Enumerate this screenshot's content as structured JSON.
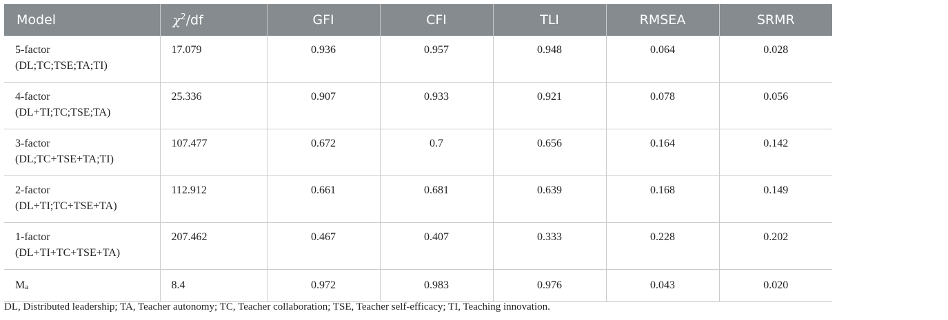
{
  "table": {
    "headers": {
      "model": "Model",
      "chi_symbol": "χ",
      "chi_exp": "2",
      "chi_rest": "/df",
      "gfi": "GFI",
      "cfi": "CFI",
      "tli": "TLI",
      "rmsea": "RMSEA",
      "srmr": "SRMR"
    },
    "rows": [
      {
        "model_line1": "5-factor",
        "model_line2": "(DL;TC;TSE;TA;TI)",
        "chi": "17.079",
        "gfi": "0.936",
        "cfi": "0.957",
        "tli": "0.948",
        "rmsea": "0.064",
        "srmr": "0.028"
      },
      {
        "model_line1": "4-factor",
        "model_line2": "(DL+TI;TC;TSE;TA)",
        "chi": "25.336",
        "gfi": "0.907",
        "cfi": "0.933",
        "tli": "0.921",
        "rmsea": "0.078",
        "srmr": "0.056"
      },
      {
        "model_line1": "3-factor",
        "model_line2": "(DL;TC+TSE+TA;TI)",
        "chi": "107.477",
        "gfi": "0.672",
        "cfi": "0.7",
        "tli": "0.656",
        "rmsea": "0.164",
        "srmr": "0.142"
      },
      {
        "model_line1": "2-factor",
        "model_line2": "(DL+TI;TC+TSE+TA)",
        "chi": "112.912",
        "gfi": "0.661",
        "cfi": "0.681",
        "tli": "0.639",
        "rmsea": "0.168",
        "srmr": "0.149"
      },
      {
        "model_line1": "1-factor",
        "model_line2": "(DL+TI+TC+TSE+TA)",
        "chi": "207.462",
        "gfi": "0.467",
        "cfi": "0.407",
        "tli": "0.333",
        "rmsea": "0.228",
        "srmr": "0.202"
      }
    ],
    "last_row": {
      "model_base": "M",
      "model_sub": "a",
      "chi": "8.4",
      "gfi": "0.972",
      "cfi": "0.983",
      "tli": "0.976",
      "rmsea": "0.043",
      "srmr": "0.020"
    }
  },
  "footnote": "DL, Distributed leadership; TA, Teacher autonomy; TC, Teacher collaboration; TSE, Teacher self-efficacy; TI, Teaching innovation.",
  "colors": {
    "header_bg": "#858b8f",
    "header_text": "#ffffff",
    "rule": "#c9ccce"
  }
}
